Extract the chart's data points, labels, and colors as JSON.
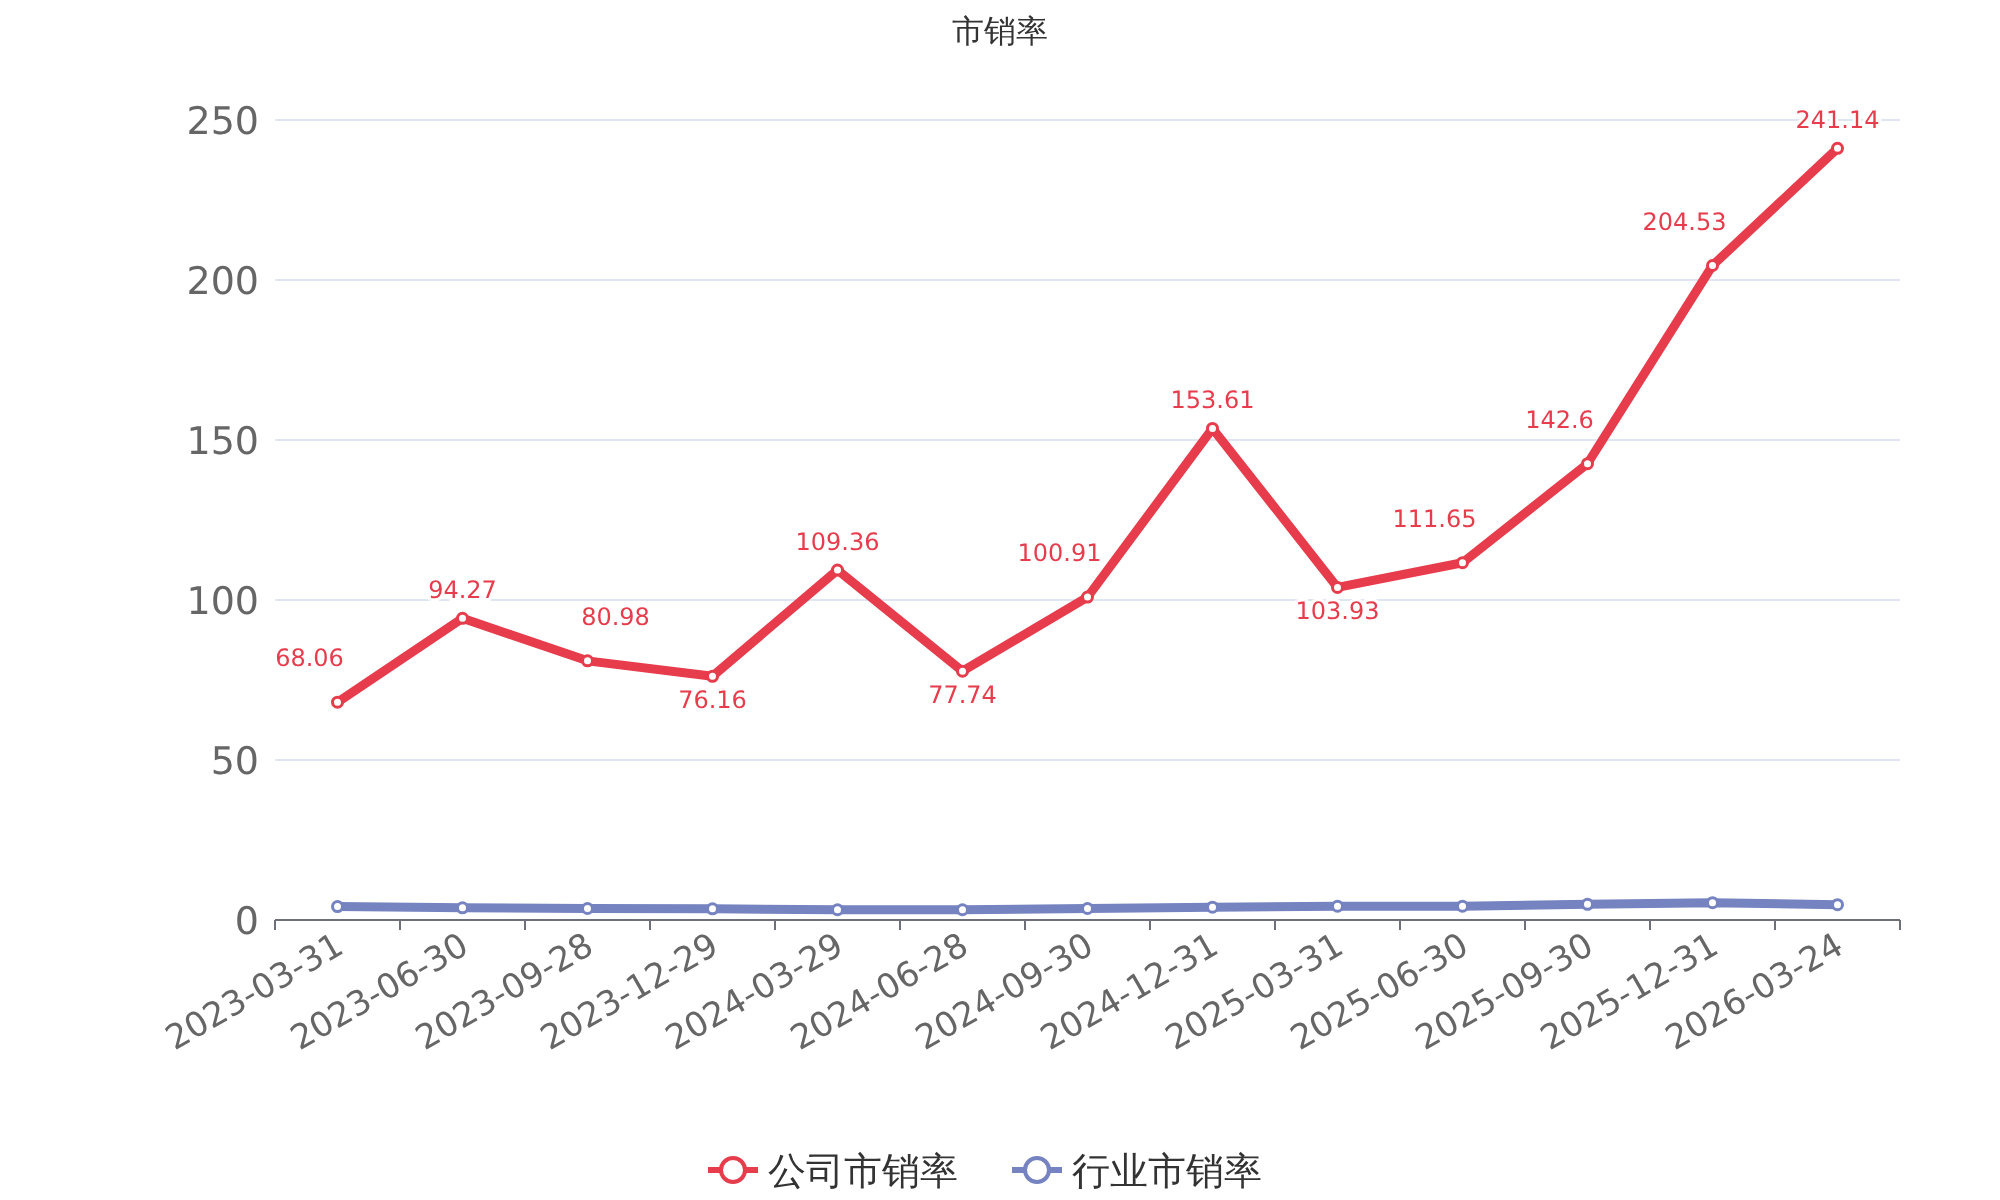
{
  "chart_data": {
    "type": "line",
    "title": "市销率",
    "categories": [
      "2023-03-31",
      "2023-06-30",
      "2023-09-28",
      "2023-12-29",
      "2024-03-29",
      "2024-06-28",
      "2024-09-30",
      "2024-12-31",
      "2025-03-31",
      "2025-06-30",
      "2025-09-30",
      "2025-12-31",
      "2026-03-24"
    ],
    "series": [
      {
        "name": "公司市销率",
        "color": "#e63c4b",
        "values": [
          68.06,
          94.27,
          80.98,
          76.16,
          109.36,
          77.74,
          100.91,
          153.61,
          103.93,
          111.65,
          142.6,
          204.53,
          241.14
        ],
        "data_labels": true
      },
      {
        "name": "行业市销率",
        "color": "#7583c0",
        "values": [
          4.2,
          3.8,
          3.6,
          3.5,
          3.2,
          3.2,
          3.6,
          4.0,
          4.3,
          4.3,
          4.9,
          5.4,
          4.8
        ]
      }
    ],
    "ylim": [
      0,
      250
    ],
    "yticks": [
      0,
      50,
      100,
      150,
      200,
      250
    ],
    "grid": "y",
    "legend": "bottom",
    "marker": "circle",
    "line_style": "solid"
  }
}
